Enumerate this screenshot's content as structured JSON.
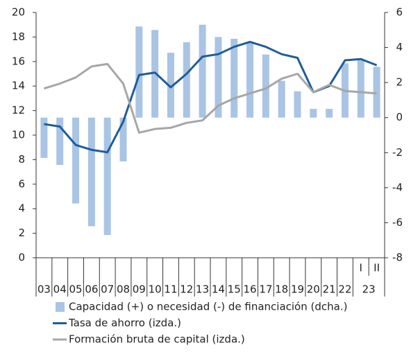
{
  "chart_data": {
    "type": "bar-line",
    "categories": [
      "03",
      "04",
      "05",
      "06",
      "07",
      "08",
      "09",
      "10",
      "11",
      "12",
      "13",
      "14",
      "15",
      "16",
      "17",
      "18",
      "19",
      "20",
      "21",
      "22",
      "I",
      "II"
    ],
    "category_groups": [
      {
        "label": "23",
        "categories": [
          "I",
          "II"
        ]
      }
    ],
    "series": [
      {
        "name": "Capacidad (+) o necesidad (-) de financiación (dcha.)",
        "type": "bar",
        "axis": "y2",
        "color": "#a9c4e4",
        "values": [
          -2.3,
          -2.7,
          -4.9,
          -6.2,
          -6.7,
          -2.5,
          5.2,
          5.0,
          3.7,
          4.3,
          5.3,
          4.6,
          4.5,
          4.3,
          3.6,
          2.1,
          1.5,
          0.5,
          0.5,
          3.1,
          3.3,
          2.9
        ]
      },
      {
        "name": "Tasa de ahorro (izda.)",
        "type": "line",
        "color": "#1f5c99",
        "values": [
          10.9,
          10.7,
          9.2,
          8.8,
          8.6,
          11.1,
          14.9,
          15.1,
          13.9,
          15.0,
          16.4,
          16.6,
          17.2,
          17.6,
          17.2,
          16.6,
          16.3,
          13.5,
          14.0,
          16.1,
          16.2,
          15.7
        ]
      },
      {
        "name": "Formación bruta de capital (izda.)",
        "type": "line",
        "color": "#a6a6a6",
        "values": [
          13.8,
          14.2,
          14.7,
          15.6,
          15.8,
          14.2,
          10.2,
          10.5,
          10.6,
          11.0,
          11.2,
          12.4,
          13.0,
          13.4,
          13.8,
          14.6,
          15.0,
          13.5,
          14.1,
          13.6,
          13.5,
          13.4
        ]
      }
    ],
    "ylim": [
      0,
      20
    ],
    "yticks": [
      0,
      2,
      4,
      6,
      8,
      10,
      12,
      14,
      16,
      18,
      20
    ],
    "y2lim": [
      -8,
      6
    ],
    "y2ticks": [
      -8,
      -6,
      -4,
      -2,
      0,
      2,
      4,
      6
    ],
    "grid": false
  }
}
